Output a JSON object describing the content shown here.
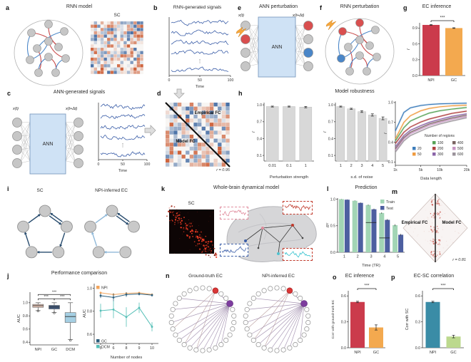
{
  "figure": {
    "panels": {
      "a": {
        "letter": "a",
        "title": "RNN model",
        "matrix_title": "SC"
      },
      "b": {
        "letter": "b",
        "title": "RNN-generated signals",
        "xticks": [
          "0",
          "50",
          "100"
        ],
        "xlabel": "Time",
        "ellipsis": "⋮"
      },
      "c": {
        "letter": "c",
        "title": "ANN-generated signals",
        "input_label": "x(t)",
        "output_label": "x(t+Δt)",
        "box_label": "ANN",
        "xticks": [
          "0",
          "50",
          "100"
        ],
        "xlabel": "Time",
        "ellipsis": "⋮"
      },
      "d": {
        "letter": "d",
        "upper_triangle_label": "Empirical FC",
        "lower_triangle_label": "Model FC",
        "corr_text": "r = 0.95"
      },
      "e": {
        "letter": "e",
        "title": "ANN perturbation",
        "input_label": "x(t)",
        "output_label": "x(t+Δt)",
        "box_label": "ANN"
      },
      "f": {
        "letter": "f",
        "title": "RNN perturbation"
      },
      "g": {
        "letter": "g"
      },
      "h": {
        "letter": "h",
        "title": "Model robustness"
      },
      "i": {
        "letter": "i",
        "left_title": "SC",
        "right_title": "NPI-inferred EC"
      },
      "j": {
        "letter": "j",
        "title": "Performance comparison"
      },
      "k": {
        "letter": "k",
        "title": "Whole-brain dynamical model",
        "matrix_title": "SC"
      },
      "l": {
        "letter": "l"
      },
      "m": {
        "letter": "m",
        "left_label": "Empirical FC",
        "right_label": "Model FC",
        "corr_text": "r = 0.81"
      },
      "n": {
        "letter": "n",
        "left_title": "Ground-truth EC",
        "right_title": "NPI-inferred EC"
      },
      "o": {
        "letter": "o"
      },
      "p": {
        "letter": "p"
      }
    },
    "icons": {
      "perturbation": "lightning-bolt",
      "flow_down": "hollow-down-arrow",
      "flow_right": "hollow-right-arrow"
    }
  },
  "chart_data": [
    {
      "id": "g",
      "type": "bar",
      "title": "EC inference",
      "ylabel": "r",
      "categories": [
        "NPI",
        "GC"
      ],
      "values": [
        0.96,
        0.9
      ],
      "errors": [
        0.006,
        0.006
      ],
      "colors": [
        "#cb3b4c",
        "#f3a94f"
      ],
      "yticks": [
        0.0,
        0.3,
        0.6,
        0.9
      ],
      "ylim": [
        0,
        1.0
      ],
      "sig": "***"
    },
    {
      "id": "h1",
      "type": "bar",
      "xlabel": "Perturbation strength",
      "ylabel": "r",
      "categories": [
        "0.01",
        "0.1",
        "1"
      ],
      "values": [
        0.97,
        0.97,
        0.96
      ],
      "errors": [
        0.008,
        0.008,
        0.012
      ],
      "colors": "#d8d8d8",
      "yticks": [
        0.1,
        0.4,
        0.7,
        1.0
      ],
      "ylim": [
        0,
        1.04
      ]
    },
    {
      "id": "h2",
      "type": "bar",
      "xlabel": "s.d. of noise",
      "ylabel": "r",
      "categories": [
        "1",
        "2",
        "3",
        "4",
        "5"
      ],
      "values": [
        0.97,
        0.93,
        0.88,
        0.82,
        0.76
      ],
      "errors": [
        0.008,
        0.01,
        0.015,
        0.02,
        0.025
      ],
      "colors": "#d8d8d8",
      "yticks": [
        0.1,
        0.4,
        0.7,
        1.0
      ],
      "ylim": [
        0,
        1.04
      ]
    },
    {
      "id": "h3",
      "type": "line",
      "xlabel": "Data length",
      "ylabel": "r",
      "xticks": [
        "1k",
        "5k",
        "10k",
        "20k"
      ],
      "xtick_values": [
        1,
        5,
        10,
        20
      ],
      "x_thousands": [
        1,
        2,
        3,
        5,
        7,
        10,
        14,
        20
      ],
      "yticks": [
        0.1,
        0.4,
        0.7,
        1.0
      ],
      "ylim": [
        0.05,
        1.02
      ],
      "legend_title": "Number of regions",
      "series": [
        {
          "name": "20",
          "color": "#3d7dbb",
          "values": [
            0.57,
            0.85,
            0.92,
            0.955,
            0.97,
            0.98,
            0.985,
            0.99
          ]
        },
        {
          "name": "50",
          "color": "#ef9b40",
          "values": [
            0.45,
            0.7,
            0.8,
            0.875,
            0.91,
            0.935,
            0.95,
            0.96
          ]
        },
        {
          "name": "100",
          "color": "#56a256",
          "values": [
            0.42,
            0.62,
            0.72,
            0.79,
            0.84,
            0.875,
            0.9,
            0.925
          ]
        },
        {
          "name": "200",
          "color": "#b04040",
          "values": [
            0.38,
            0.55,
            0.63,
            0.705,
            0.75,
            0.79,
            0.835,
            0.87
          ]
        },
        {
          "name": "300",
          "color": "#8a64a8",
          "values": [
            0.33,
            0.5,
            0.58,
            0.65,
            0.7,
            0.745,
            0.79,
            0.83
          ]
        },
        {
          "name": "400",
          "color": "#7a6360",
          "values": [
            0.3,
            0.47,
            0.55,
            0.62,
            0.675,
            0.72,
            0.765,
            0.81
          ]
        },
        {
          "name": "500",
          "color": "#c795c3",
          "values": [
            0.28,
            0.45,
            0.53,
            0.6,
            0.655,
            0.7,
            0.745,
            0.79
          ]
        },
        {
          "name": "600",
          "color": "#9b939b",
          "values": [
            0.25,
            0.42,
            0.5,
            0.57,
            0.625,
            0.675,
            0.72,
            0.77
          ]
        }
      ]
    },
    {
      "id": "l",
      "type": "grouped_bar",
      "title": "Prediction",
      "xlabel": "Time (TR)",
      "ylabel": "R²",
      "categories": [
        "1",
        "2",
        "3",
        "4",
        "5"
      ],
      "yticks": [
        0.0,
        0.5,
        1.0
      ],
      "ylim": [
        0,
        1.02
      ],
      "series": [
        {
          "name": "Train",
          "color": "#a2d5b5",
          "values": [
            1.0,
            0.97,
            0.89,
            0.74,
            0.51
          ],
          "errors": [
            0.004,
            0.006,
            0.01,
            0.014,
            0.018
          ]
        },
        {
          "name": "Test",
          "color": "#4d5fa0",
          "values": [
            0.99,
            0.93,
            0.81,
            0.61,
            0.33
          ],
          "errors": [
            0.004,
            0.008,
            0.012,
            0.016,
            0.018
          ]
        }
      ],
      "baselines": [
        {
          "category": "3",
          "y": 0.56
        },
        {
          "category": "4",
          "y": 0.27
        }
      ]
    },
    {
      "id": "j1",
      "type": "box",
      "ylabel": "AUC",
      "categories": [
        "NPI",
        "GC",
        "DCM"
      ],
      "yticks": [
        0.4,
        0.6,
        0.8,
        1.0
      ],
      "ylim": [
        0.36,
        1.16
      ],
      "boxes": [
        {
          "color": "#e5c3b5",
          "median": 0.955,
          "q1": 0.93,
          "q3": 0.975,
          "whisker_low": 0.88,
          "whisker_high": 1.0,
          "outliers": [
            0.875
          ]
        },
        {
          "color": "#3f5a80",
          "median": 0.935,
          "q1": 0.905,
          "q3": 0.96,
          "whisker_low": 0.85,
          "whisker_high": 1.0,
          "outliers": [
            0.845
          ]
        },
        {
          "color": "#a5cfe3",
          "median": 0.79,
          "q1": 0.7,
          "q3": 0.85,
          "whisker_low": 0.44,
          "whisker_high": 1.0,
          "outliers": [
            0.43
          ]
        }
      ],
      "sig": [
        {
          "pair": [
            0,
            1
          ],
          "label": "***"
        },
        {
          "pair": [
            1,
            2
          ],
          "label": "***"
        },
        {
          "pair": [
            0,
            2
          ],
          "label": "***"
        }
      ]
    },
    {
      "id": "j2",
      "type": "line_err",
      "xlabel": "Number of nodes",
      "ylabel": "AUC",
      "categories": [
        "5",
        "6",
        "8",
        "9",
        "10"
      ],
      "yticks": [
        0.6,
        0.8,
        1.0
      ],
      "ylim": [
        0.52,
        1.04
      ],
      "series": [
        {
          "name": "NPI",
          "color": "#f2a55c",
          "values": [
            0.96,
            0.945,
            0.955,
            0.96,
            0.945
          ],
          "errors": [
            0.01,
            0.012,
            0.01,
            0.008,
            0.01
          ]
        },
        {
          "name": "GC",
          "color": "#2d5f7d",
          "values": [
            0.935,
            0.92,
            0.945,
            0.95,
            0.94
          ],
          "errors": [
            0.02,
            0.035,
            0.02,
            0.012,
            0.012
          ]
        },
        {
          "name": "DCM",
          "color": "#55bfb7",
          "values": [
            0.805,
            0.815,
            0.75,
            0.83,
            0.665
          ],
          "errors": [
            0.06,
            0.075,
            0.085,
            0.045,
            0.04
          ]
        }
      ]
    },
    {
      "id": "o",
      "type": "bar",
      "title": "EC inference",
      "ylabel": "Corr with ground-truth EC",
      "categories": [
        "NPI",
        "GC"
      ],
      "values": [
        0.53,
        0.235
      ],
      "errors": [
        0.008,
        0.03
      ],
      "colors": [
        "#cb3b4c",
        "#f3a94f"
      ],
      "yticks": [
        0.0,
        0.3,
        0.6
      ],
      "ylim": [
        0,
        0.66
      ],
      "sig": "***"
    },
    {
      "id": "p",
      "type": "bar",
      "title": "EC-SC correlation",
      "ylabel": "Corr with SC",
      "categories": [
        "NPI",
        "GC"
      ],
      "values": [
        0.53,
        0.13
      ],
      "errors": [
        0.008,
        0.015
      ],
      "colors": [
        "#3a8ca6",
        "#bcd98e"
      ],
      "yticks": [
        0.0,
        0.3,
        0.6
      ],
      "ylim": [
        0,
        0.66
      ],
      "sig": "***"
    }
  ]
}
